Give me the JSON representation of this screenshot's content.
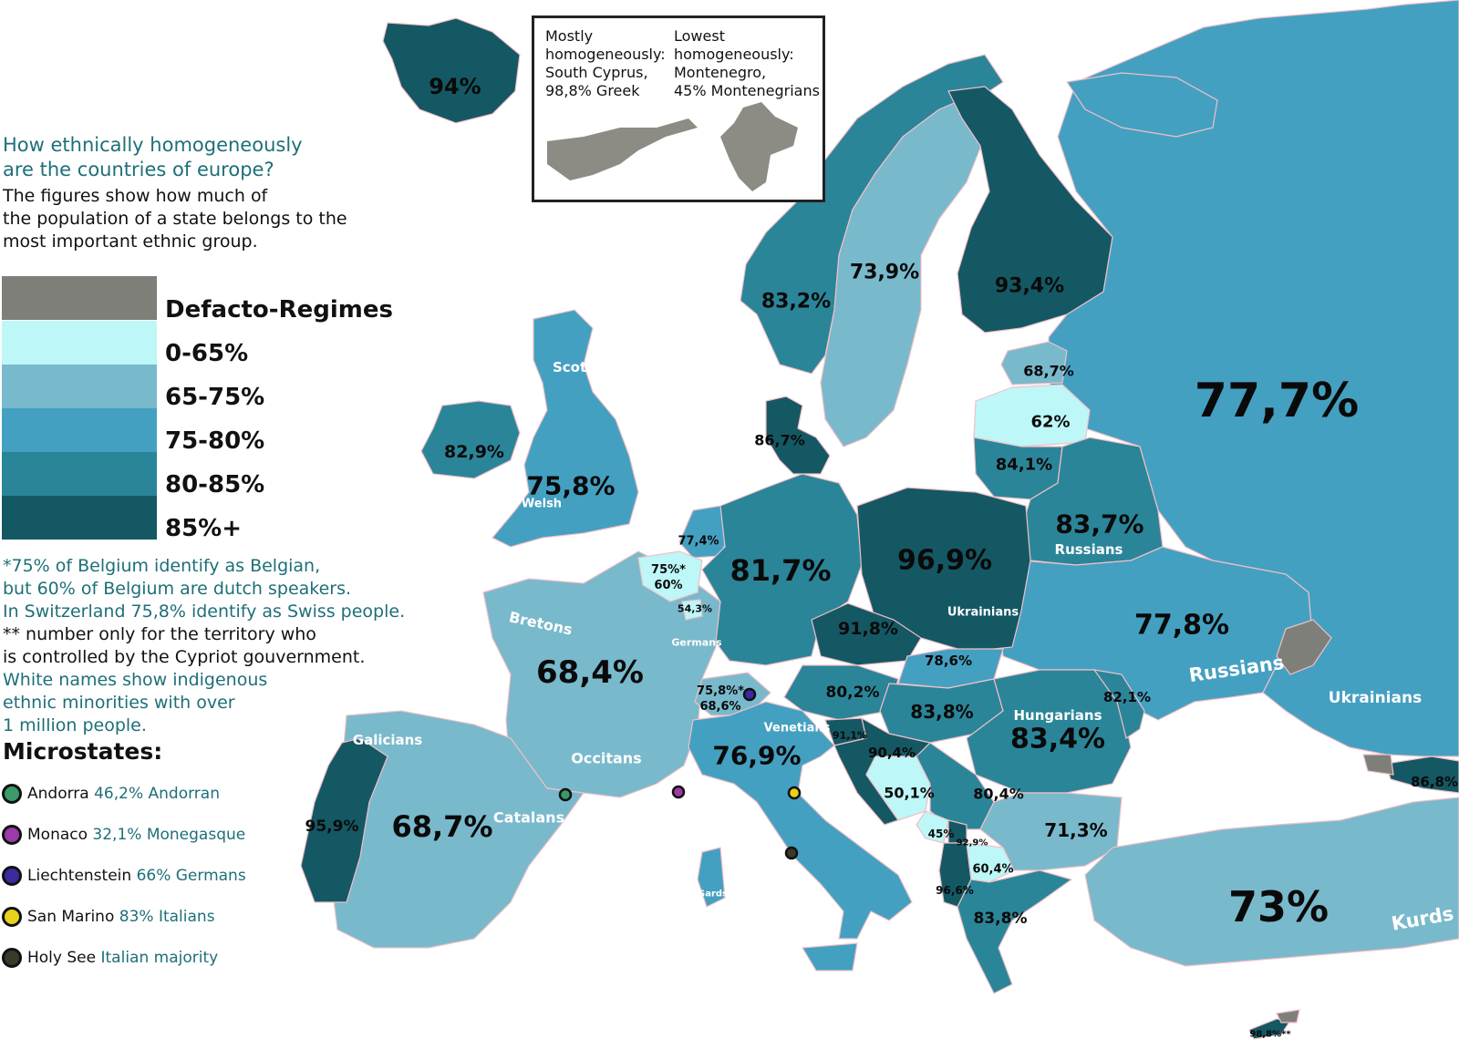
{
  "title": {
    "line1": "How ethnically homogeneously",
    "line2": "are the countries of europe?"
  },
  "subtitle": {
    "line1": "The figures show how much of",
    "line2": "the population of a state belongs to the",
    "line3": "most important ethnic group."
  },
  "legend": [
    {
      "label": "Defacto-Regimes",
      "color": "#7f7f7a"
    },
    {
      "label": "0-65%",
      "color": "#bdf7f7"
    },
    {
      "label": "65-75%",
      "color": "#79b9cc"
    },
    {
      "label": "75-80%",
      "color": "#44a0c1"
    },
    {
      "label": "80-85%",
      "color": "#2b8599"
    },
    {
      "label": "85%+",
      "color": "#145864"
    }
  ],
  "notes": {
    "belgium1": "*75% of Belgium identify as Belgian,",
    "belgium2": "but 60% of Belgium are dutch speakers.",
    "swiss": "In Switzerland 75,8% identify as Swiss people.",
    "cyprus1": "** number only for the territory who",
    "cyprus2": "is controlled by the Cypriot gouvernment.",
    "white1": "White names show indigenous",
    "white2": "ethnic minorities with over",
    "white3": "1 million people."
  },
  "microstates": {
    "heading": "Microstates:",
    "items": [
      {
        "name": "Andorra",
        "value": "46,2% Andorran",
        "dot": "#3a9a6a"
      },
      {
        "name": "Monaco",
        "value": "32,1% Monegasque",
        "dot": "#9b3aa8"
      },
      {
        "name": "Liechtenstein",
        "value": "66% Germans",
        "dot": "#3a2aa0"
      },
      {
        "name": "San Marino",
        "value": "83% Italians",
        "dot": "#e8d21a"
      },
      {
        "name": "Holy See",
        "value": "Italian majority",
        "dot": "#3a3a2a"
      }
    ]
  },
  "inset": {
    "left_text": "Mostly\nhomogeneously:\nSouth Cyprus,\n98,8% Greek",
    "right_text": "Lowest\nhomogeneously:\nMontenegro,\n45% Montenegrians"
  },
  "countries": [
    {
      "name": "Iceland",
      "value": "94%",
      "size": 24
    },
    {
      "name": "Norway",
      "value": "83,2%",
      "size": 22
    },
    {
      "name": "Sweden",
      "value": "73,9%",
      "size": 22
    },
    {
      "name": "Finland",
      "value": "93,4%",
      "size": 22
    },
    {
      "name": "Estonia",
      "value": "68,7%",
      "size": 16
    },
    {
      "name": "Latvia",
      "value": "62%",
      "size": 18
    },
    {
      "name": "Lithuania",
      "value": "84,1%",
      "size": 18
    },
    {
      "name": "Denmark",
      "value": "86,7%",
      "size": 16
    },
    {
      "name": "Ireland",
      "value": "82,9%",
      "size": 19
    },
    {
      "name": "United Kingdom",
      "value": "75,8%",
      "size": 28
    },
    {
      "name": "Russia",
      "value": "77,7%",
      "size": 52
    },
    {
      "name": "Belarus",
      "value": "83,7%",
      "size": 28
    },
    {
      "name": "Netherlands",
      "value": "77,4%",
      "size": 13
    },
    {
      "name": "Belgium",
      "value": "75%*\n60%",
      "size": 13
    },
    {
      "name": "Luxembourg",
      "value": "54,3%",
      "size": 11
    },
    {
      "name": "Germany",
      "value": "81,7%",
      "size": 32
    },
    {
      "name": "Poland",
      "value": "96,9%",
      "size": 30
    },
    {
      "name": "Ukraine",
      "value": "77,8%",
      "size": 30
    },
    {
      "name": "Czech Republic",
      "value": "91,8%",
      "size": 19
    },
    {
      "name": "Slovakia",
      "value": "78,6%",
      "size": 15
    },
    {
      "name": "Austria",
      "value": "80,2%",
      "size": 17
    },
    {
      "name": "Switzerland",
      "value": "75,8%*\n68,6%",
      "size": 13
    },
    {
      "name": "Hungary",
      "value": "83,8%",
      "size": 20
    },
    {
      "name": "Moldova",
      "value": "82,1%",
      "size": 15
    },
    {
      "name": "Romania",
      "value": "83,4%",
      "size": 30
    },
    {
      "name": "France",
      "value": "68,4%",
      "size": 34
    },
    {
      "name": "Slovenia",
      "value": "91,1%",
      "size": 11
    },
    {
      "name": "Croatia",
      "value": "90,4%",
      "size": 15
    },
    {
      "name": "Serbia",
      "value": "80,4%",
      "size": 16
    },
    {
      "name": "Bosnia",
      "value": "50,1%",
      "size": 16
    },
    {
      "name": "Montenegro",
      "value": "45%",
      "size": 12
    },
    {
      "name": "Kosovo",
      "value": "92,9%",
      "size": 10
    },
    {
      "name": "North Macedonia",
      "value": "60,4%",
      "size": 13
    },
    {
      "name": "Albania",
      "value": "96,6%",
      "size": 12
    },
    {
      "name": "Bulgaria",
      "value": "71,3%",
      "size": 20
    },
    {
      "name": "Greece",
      "value": "83,8%",
      "size": 17
    },
    {
      "name": "Italy",
      "value": "76,9%",
      "size": 28
    },
    {
      "name": "Spain",
      "value": "68,7%",
      "size": 32
    },
    {
      "name": "Portugal",
      "value": "95,9%",
      "size": 17
    },
    {
      "name": "Turkey",
      "value": "73%",
      "size": 46
    },
    {
      "name": "Georgia",
      "value": "86,8%",
      "size": 15
    },
    {
      "name": "Cyprus",
      "value": "98,8%**",
      "size": 10
    }
  ],
  "minorities": [
    {
      "name": "Scots",
      "size": 15
    },
    {
      "name": "Welsh",
      "size": 13
    },
    {
      "name": "Russians",
      "size": 15
    },
    {
      "name": "Ukrainians",
      "size": 13
    },
    {
      "name": "Bretons",
      "size": 16
    },
    {
      "name": "Germans",
      "size": 11
    },
    {
      "name": "Russians",
      "size": 21
    },
    {
      "name": "Ukrainians",
      "size": 17
    },
    {
      "name": "Hungarians",
      "size": 15
    },
    {
      "name": "Venetians",
      "size": 13
    },
    {
      "name": "Galicians",
      "size": 15
    },
    {
      "name": "Occitans",
      "size": 16
    },
    {
      "name": "Catalans",
      "size": 16
    },
    {
      "name": "Sards",
      "size": 10
    },
    {
      "name": "Kurds",
      "size": 21
    }
  ]
}
